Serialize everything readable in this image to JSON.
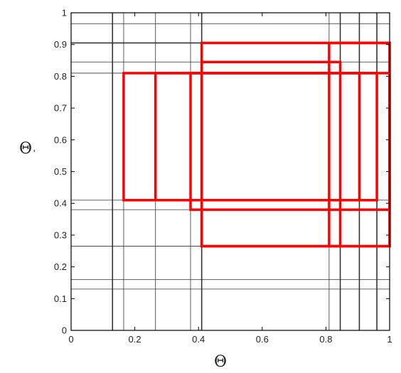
{
  "chart_data": {
    "type": "line",
    "title": "",
    "xlabel": "Θ",
    "ylabel": "Θ",
    "ylabel_subscript": "'",
    "xlim": [
      0,
      1
    ],
    "ylim": [
      0,
      1
    ],
    "x_ticks": [
      {
        "value": 0,
        "label": "0"
      },
      {
        "value": 0.2,
        "label": "0.2"
      },
      {
        "value": 0.4,
        "label": "0.4"
      },
      {
        "value": 0.6,
        "label": "0.6"
      },
      {
        "value": 0.8,
        "label": "0.8"
      },
      {
        "value": 1,
        "label": "1"
      }
    ],
    "y_ticks": [
      {
        "value": 0,
        "label": "0"
      },
      {
        "value": 0.1,
        "label": "0.1"
      },
      {
        "value": 0.2,
        "label": "0.2"
      },
      {
        "value": 0.3,
        "label": "0.3"
      },
      {
        "value": 0.4,
        "label": "0.4"
      },
      {
        "value": 0.5,
        "label": "0.5"
      },
      {
        "value": 0.6,
        "label": "0.6"
      },
      {
        "value": 0.7,
        "label": "0.7"
      },
      {
        "value": 0.8,
        "label": "0.8"
      },
      {
        "value": 0.9,
        "label": "0.9"
      },
      {
        "value": 1,
        "label": "1"
      }
    ],
    "grid_vertical": [
      {
        "x": 0.13,
        "weight": "thick"
      },
      {
        "x": 0.165,
        "weight": "thin"
      },
      {
        "x": 0.265,
        "weight": "thin"
      },
      {
        "x": 0.375,
        "weight": "thin"
      },
      {
        "x": 0.41,
        "weight": "thick"
      },
      {
        "x": 0.81,
        "weight": "thin"
      },
      {
        "x": 0.845,
        "weight": "thick"
      },
      {
        "x": 0.905,
        "weight": "thick"
      },
      {
        "x": 0.96,
        "weight": "thick"
      },
      {
        "x": 1.0,
        "weight": "thin"
      }
    ],
    "grid_horizontal": [
      {
        "y": 0.13,
        "weight": "thin"
      },
      {
        "y": 0.16,
        "weight": "thin"
      },
      {
        "y": 0.265,
        "weight": "thin"
      },
      {
        "y": 0.38,
        "weight": "thin"
      },
      {
        "y": 0.41,
        "weight": "thin"
      },
      {
        "y": 0.81,
        "weight": "thin"
      },
      {
        "y": 0.845,
        "weight": "thin"
      },
      {
        "y": 0.905,
        "weight": "thick"
      },
      {
        "y": 0.965,
        "weight": "thin"
      }
    ],
    "rectangles": [
      {
        "x0": 0.165,
        "x1": 0.905,
        "y0": 0.41,
        "y1": 0.81
      },
      {
        "x0": 0.265,
        "x1": 0.96,
        "y0": 0.41,
        "y1": 0.81
      },
      {
        "x0": 0.375,
        "x1": 1.0,
        "y0": 0.38,
        "y1": 0.81
      },
      {
        "x0": 0.41,
        "x1": 1.0,
        "y0": 0.265,
        "y1": 0.905
      },
      {
        "x0": 0.41,
        "x1": 0.845,
        "y0": 0.265,
        "y1": 0.845
      },
      {
        "x0": 0.81,
        "x1": 1.0,
        "y0": 0.265,
        "y1": 0.905
      }
    ],
    "colors": {
      "rectangle": "#ff0000",
      "grid": "#333333",
      "axes": "#000000"
    }
  }
}
